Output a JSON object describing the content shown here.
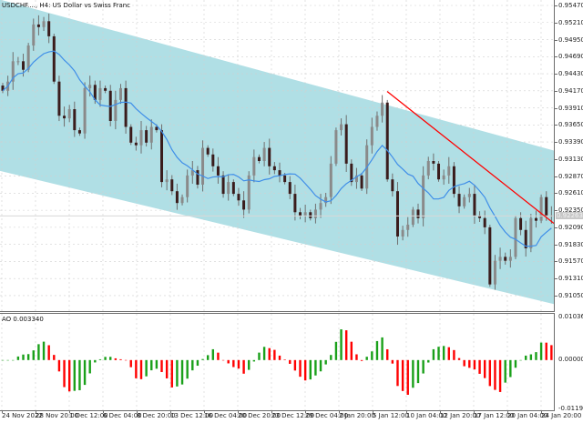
{
  "header": {
    "title": "USDCHF...., H4:  US Dollar vs Swiss Franc"
  },
  "indicator": {
    "title": "AO 0.003340"
  },
  "colors": {
    "channel": "#b0dfe5",
    "candle": "#3a1c1c",
    "wick": "#6e6e6e",
    "ma": "#3f8ee8",
    "trendline": "#ff0000",
    "ao_up": "#1aa01a",
    "ao_down": "#ff0000",
    "grid": "#d0d0d0"
  },
  "chart_data": [
    {
      "type": "candlestick",
      "symbol": "USDCHF",
      "timeframe": "H4",
      "ylim": [
        0.9092,
        0.9556
      ],
      "y_ticks": [
        "0.95470",
        "0.95210",
        "0.94950",
        "0.94690",
        "0.94430",
        "0.94170",
        "0.93910",
        "0.93650",
        "0.93390",
        "0.93130",
        "0.92870",
        "0.92610",
        "0.92350",
        "0.92090",
        "0.91830",
        "0.91570",
        "0.91310",
        "0.91050"
      ],
      "current_price": "0.92263",
      "x_ticks": [
        "24 Nov 2022",
        "28 Nov 20:00",
        "1 Dec 12:00",
        "6 Dec 04:00",
        "8 Dec 20:00",
        "13 Dec 12:00",
        "16 Dec 04:00",
        "20 Dec 20:00",
        "23 Dec 12:00",
        "29 Dec 04:00",
        "2 Jan 20:00",
        "5 Jan 12:00",
        "10 Jan 04:00",
        "12 Jan 20:00",
        "17 Jan 12:00",
        "20 Jan 04:00",
        "24 Jan 20:00"
      ],
      "closes": [
        0.9417,
        0.9431,
        0.9462,
        0.9462,
        0.9449,
        0.9486,
        0.9518,
        0.9514,
        0.9523,
        0.95,
        0.9431,
        0.9379,
        0.9375,
        0.9389,
        0.9357,
        0.9352,
        0.9421,
        0.9426,
        0.9403,
        0.9421,
        0.9417,
        0.9371,
        0.9403,
        0.9421,
        0.9362,
        0.9338,
        0.9334,
        0.9357,
        0.9338,
        0.9362,
        0.9357,
        0.9278,
        0.9282,
        0.9264,
        0.9246,
        0.9255,
        0.9288,
        0.9296,
        0.9274,
        0.933,
        0.932,
        0.9302,
        0.9288,
        0.926,
        0.9278,
        0.926,
        0.925,
        0.9236,
        0.9288,
        0.9316,
        0.931,
        0.933,
        0.9302,
        0.9296,
        0.9288,
        0.9278,
        0.926,
        0.9232,
        0.9227,
        0.9232,
        0.9223,
        0.9236,
        0.9246,
        0.9255,
        0.9306,
        0.9357,
        0.9366,
        0.9306,
        0.9278,
        0.9288,
        0.9268,
        0.9334,
        0.9362,
        0.9379,
        0.9399,
        0.9282,
        0.9264,
        0.9195,
        0.9205,
        0.9213,
        0.9236,
        0.9223,
        0.9288,
        0.931,
        0.9306,
        0.9282,
        0.9288,
        0.9302,
        0.926,
        0.9241,
        0.9255,
        0.926,
        0.9227,
        0.9223,
        0.9209,
        0.9122,
        0.9158,
        0.9164,
        0.9158,
        0.9164,
        0.9223,
        0.9205,
        0.9177,
        0.9223,
        0.9219,
        0.9255,
        0.9227,
        0.9227
      ],
      "channel": {
        "upper": [
          0.9556,
          0.9326
        ],
        "lower": [
          0.9295,
          0.9092
        ]
      },
      "trendline": [
        0.9416,
        0.9215
      ]
    },
    {
      "type": "bar",
      "name": "AO",
      "ylim": [
        -0.011999,
        0.010368
      ],
      "y_ticks": [
        "0.010368",
        "0.000000",
        "-0.011999"
      ]
    }
  ]
}
